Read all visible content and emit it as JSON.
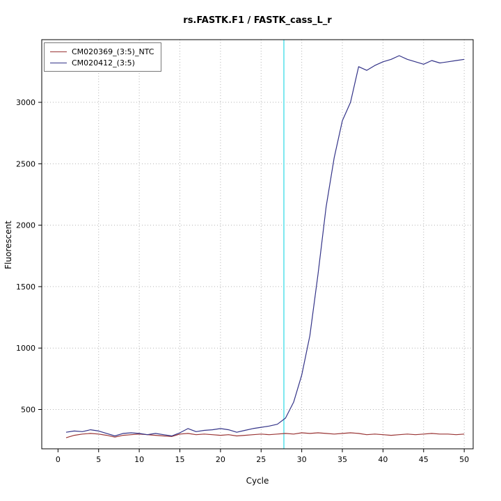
{
  "chart_data": {
    "type": "line",
    "title": "rs.FASTK.F1 / FASTK_cass_L_r",
    "xlabel": "Cycle",
    "ylabel": "Fluorescent",
    "xlim": [
      -2,
      51.1
    ],
    "ylim": [
      180,
      3510
    ],
    "x_ticks": [
      0,
      5,
      10,
      15,
      20,
      25,
      30,
      35,
      40,
      45,
      50
    ],
    "y_ticks": [
      500,
      1000,
      1500,
      2000,
      2500,
      3000
    ],
    "grid": true,
    "legend_position": "top-left",
    "threshold_line": {
      "x": 27.8,
      "color": "#7de8ef"
    },
    "x": [
      1,
      2,
      3,
      4,
      5,
      6,
      7,
      8,
      9,
      10,
      11,
      12,
      13,
      14,
      15,
      16,
      17,
      18,
      19,
      20,
      21,
      22,
      23,
      24,
      25,
      26,
      27,
      28,
      29,
      30,
      31,
      32,
      33,
      34,
      35,
      36,
      37,
      38,
      39,
      40,
      41,
      42,
      43,
      44,
      45,
      46,
      47,
      48,
      49,
      50
    ],
    "series": [
      {
        "name": "CM020369_(3:5)_NTC",
        "color": "#993333",
        "values": [
          270,
          290,
          300,
          305,
          300,
          290,
          275,
          290,
          295,
          300,
          295,
          290,
          285,
          280,
          300,
          305,
          295,
          300,
          295,
          290,
          295,
          285,
          290,
          295,
          300,
          295,
          300,
          305,
          300,
          310,
          305,
          310,
          305,
          300,
          305,
          310,
          305,
          295,
          300,
          295,
          290,
          295,
          300,
          295,
          300,
          305,
          300,
          300,
          295,
          300
        ]
      },
      {
        "name": "CM020412_(3:5)",
        "color": "#333388",
        "values": [
          315,
          325,
          320,
          335,
          325,
          305,
          285,
          305,
          310,
          305,
          295,
          305,
          295,
          285,
          310,
          345,
          320,
          330,
          335,
          345,
          335,
          315,
          330,
          345,
          355,
          365,
          380,
          430,
          560,
          780,
          1100,
          1600,
          2150,
          2550,
          2850,
          3000,
          3290,
          3260,
          3300,
          3330,
          3350,
          3380,
          3350,
          3330,
          3310,
          3340,
          3320,
          3330,
          3340,
          3350
        ]
      }
    ]
  }
}
